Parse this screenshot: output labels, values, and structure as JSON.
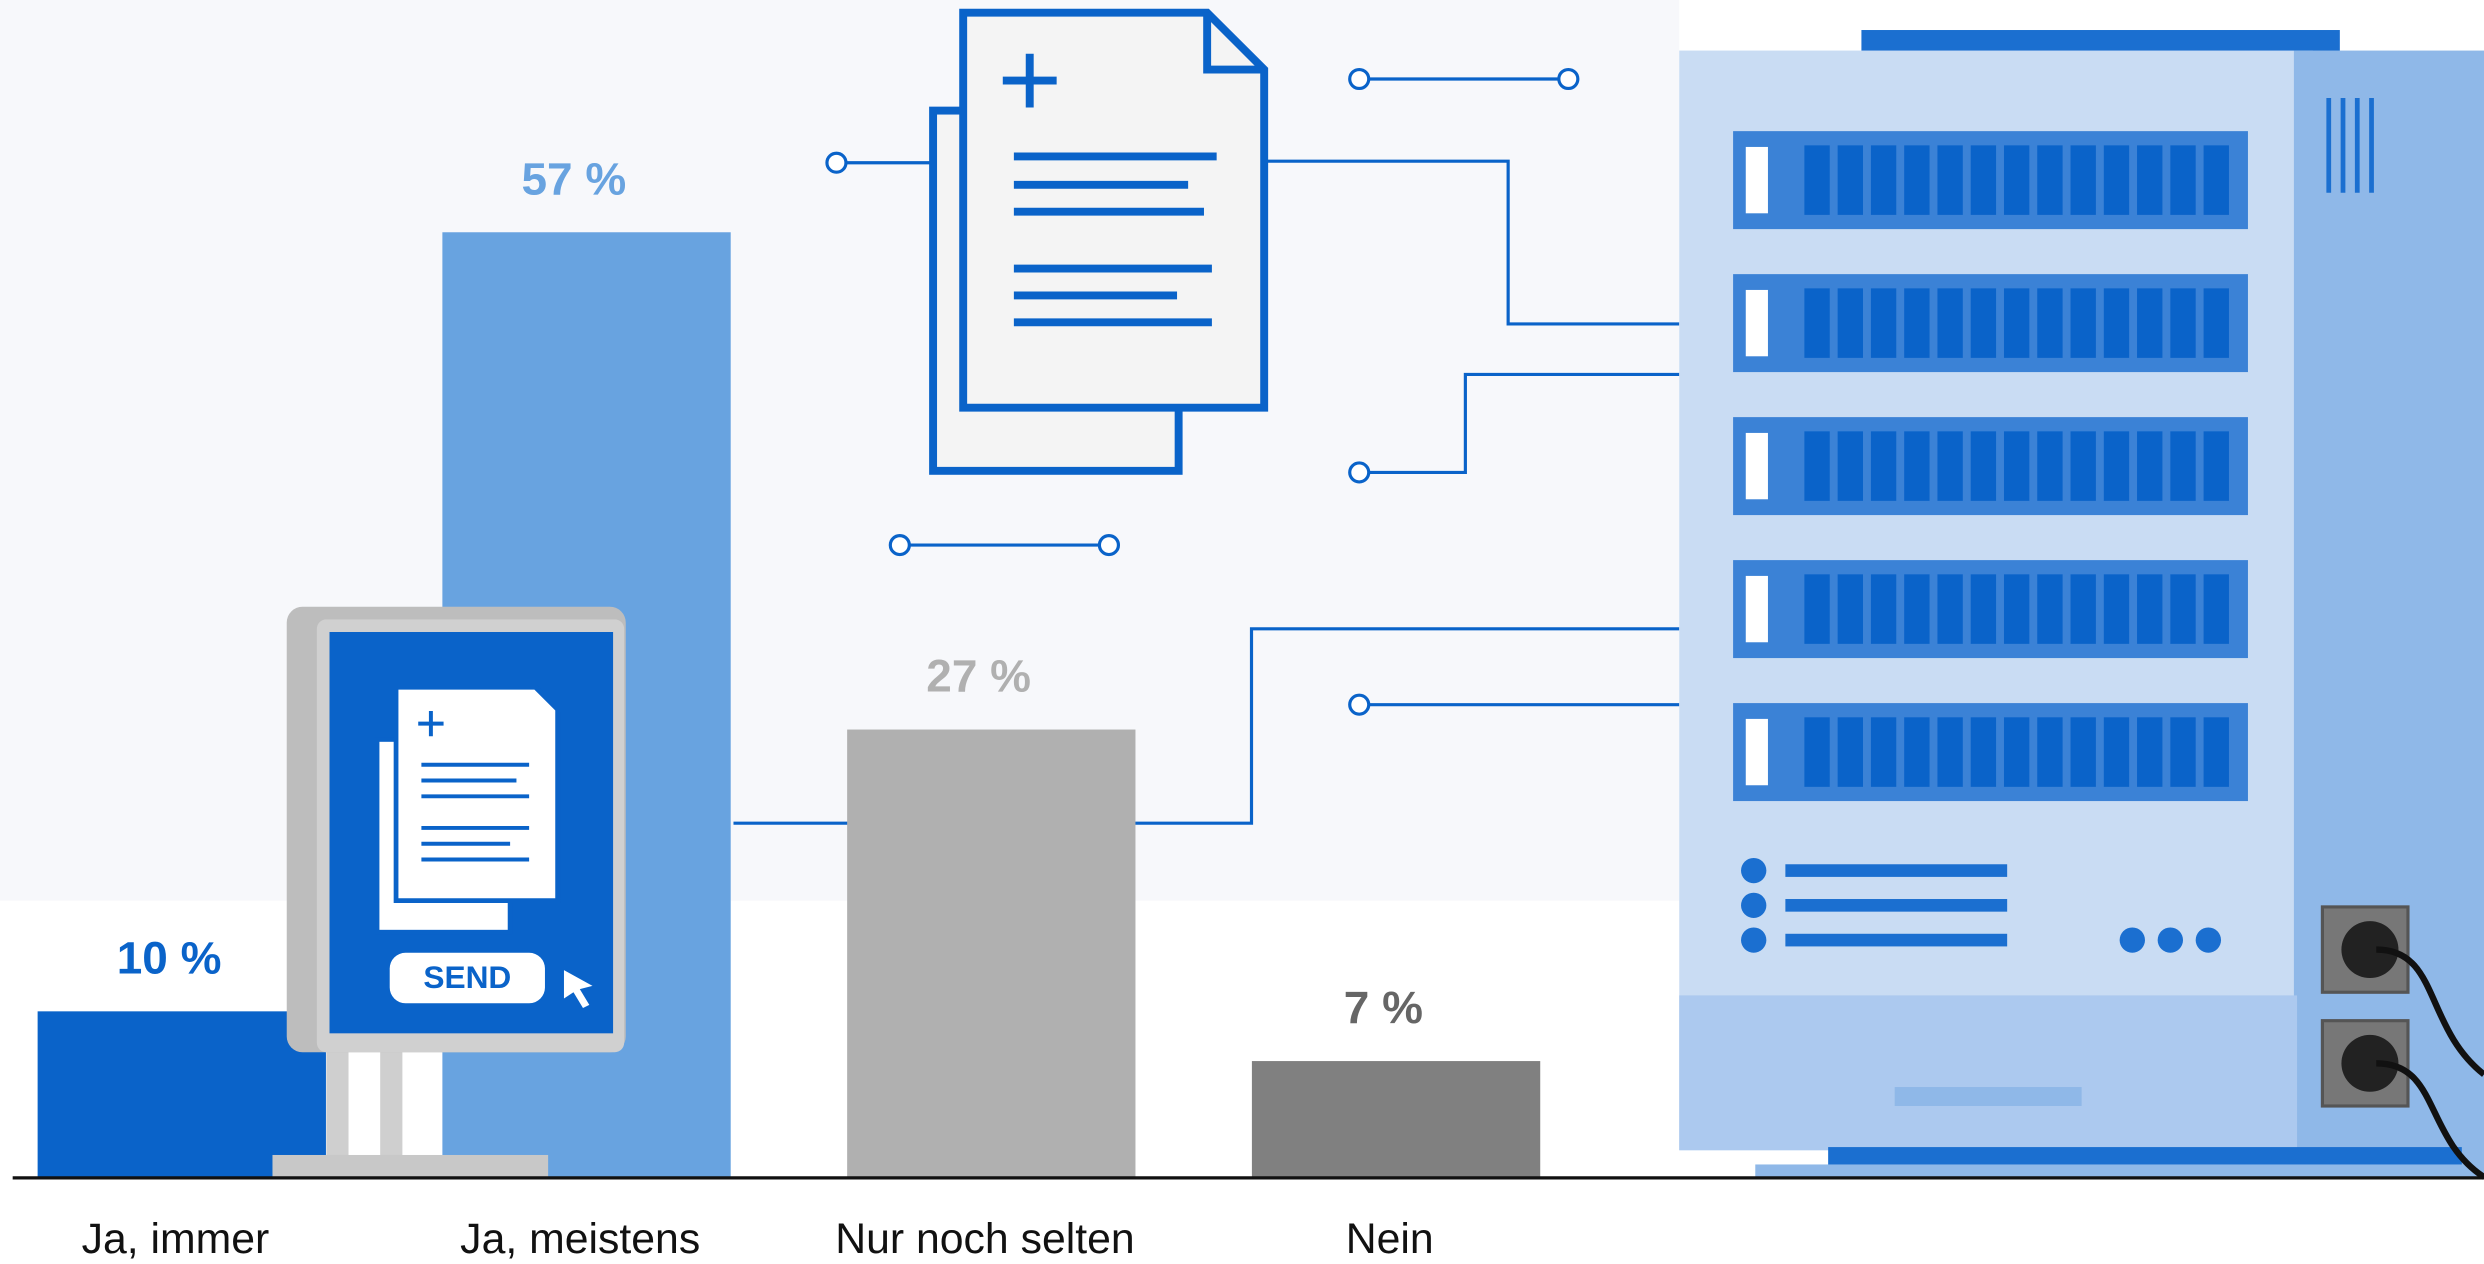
{
  "chart_data": {
    "type": "bar",
    "categories": [
      "Ja, immer",
      "Ja, meistens",
      "Nur noch selten",
      "Nein"
    ],
    "values": [
      10,
      57,
      27,
      7
    ],
    "value_labels": [
      "10 %",
      "57 %",
      "27 %",
      "7 %"
    ],
    "colors": [
      "#0a63c9",
      "#68a3e0",
      "#b0b0b0",
      "#808080"
    ],
    "label_colors": [
      "#0a63c9",
      "#68a3e0",
      "#b0b0b0",
      "#666666"
    ]
  },
  "illustration": {
    "button": "SEND"
  }
}
